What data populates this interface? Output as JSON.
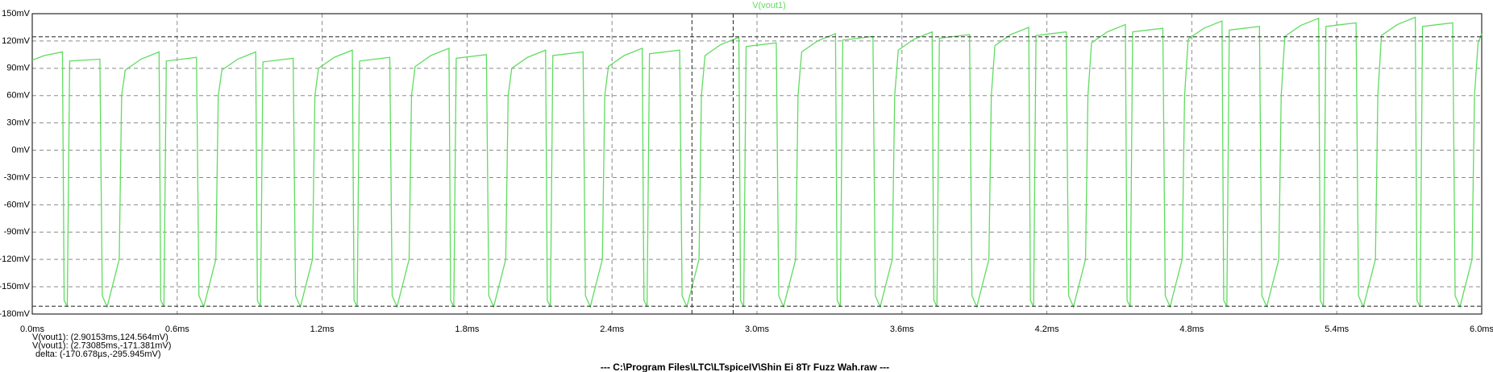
{
  "chart_data": {
    "type": "line",
    "x": [
      0,
      0.05,
      0.125,
      0.132,
      0.145,
      0.155,
      0.28,
      0.29,
      0.31,
      0.36,
      0.37,
      0.385,
      0.45,
      0.525,
      0.532,
      0.545,
      0.555,
      0.68,
      0.69,
      0.71,
      0.76,
      0.77,
      0.785,
      0.85,
      0.925,
      0.932,
      0.945,
      0.955,
      1.08,
      1.09,
      1.11,
      1.16,
      1.17,
      1.185,
      1.25,
      1.325,
      1.332,
      1.345,
      1.355,
      1.48,
      1.49,
      1.51,
      1.56,
      1.57,
      1.585,
      1.65,
      1.725,
      1.732,
      1.745,
      1.755,
      1.88,
      1.89,
      1.91,
      1.96,
      1.97,
      1.985,
      2.05,
      2.125,
      2.132,
      2.145,
      2.155,
      2.28,
      2.29,
      2.31,
      2.36,
      2.37,
      2.385,
      2.45,
      2.525,
      2.532,
      2.545,
      2.555,
      2.68,
      2.69,
      2.71,
      2.76,
      2.77,
      2.785,
      2.85,
      2.925,
      2.932,
      2.945,
      2.955,
      3.08,
      3.09,
      3.11,
      3.16,
      3.17,
      3.185,
      3.25,
      3.325,
      3.332,
      3.345,
      3.355,
      3.48,
      3.49,
      3.51,
      3.56,
      3.57,
      3.585,
      3.65,
      3.725,
      3.732,
      3.745,
      3.755,
      3.88,
      3.89,
      3.91,
      3.96,
      3.97,
      3.985,
      4.05,
      4.125,
      4.132,
      4.145,
      4.155,
      4.28,
      4.29,
      4.31,
      4.36,
      4.37,
      4.385,
      4.45,
      4.525,
      4.532,
      4.545,
      4.555,
      4.68,
      4.69,
      4.71,
      4.76,
      4.77,
      4.785,
      4.85,
      4.925,
      4.932,
      4.945,
      4.955,
      5.08,
      5.09,
      5.11,
      5.16,
      5.17,
      5.185,
      5.25,
      5.325,
      5.332,
      5.345,
      5.355,
      5.48,
      5.49,
      5.51,
      5.56,
      5.57,
      5.585,
      5.65,
      5.725,
      5.732,
      5.745,
      5.755,
      5.88,
      5.89,
      5.91,
      5.96,
      5.97,
      5.985,
      6.0
    ],
    "series": [
      {
        "name": "V(vout1)",
        "color": "#5fdc5f",
        "values": [
          99,
          104,
          108,
          -165,
          -172,
          98,
          100,
          -160,
          -172,
          -120,
          60,
          88,
          100,
          108,
          -165,
          -172,
          98,
          102,
          -160,
          -172,
          -120,
          60,
          88,
          100,
          108,
          -165,
          -172,
          97,
          101,
          -160,
          -172,
          -120,
          60,
          90,
          102,
          110,
          -165,
          -172,
          98,
          102,
          -160,
          -172,
          -120,
          60,
          92,
          104,
          112,
          -165,
          -172,
          101,
          105,
          -160,
          -172,
          -120,
          60,
          90,
          102,
          110,
          -165,
          -172,
          104,
          108,
          -160,
          -172,
          -120,
          60,
          92,
          104,
          112,
          -165,
          -172,
          106,
          110,
          -160,
          -172,
          -120,
          60,
          104,
          116,
          124,
          -165,
          -172,
          114,
          118,
          -160,
          -172,
          -120,
          60,
          108,
          120,
          128,
          -165,
          -172,
          121,
          125,
          -160,
          -172,
          -120,
          60,
          110,
          122,
          130,
          -165,
          -172,
          123,
          127,
          -160,
          -172,
          -120,
          60,
          115,
          127,
          135,
          -165,
          -172,
          126,
          130,
          -160,
          -172,
          -120,
          60,
          118,
          130,
          138,
          -165,
          -172,
          130,
          134,
          -160,
          -172,
          -120,
          60,
          122,
          134,
          142,
          -165,
          -172,
          132,
          136,
          -160,
          -172,
          -120,
          60,
          125,
          137,
          145,
          -165,
          -172,
          136,
          140,
          -160,
          -172,
          -120,
          60,
          126,
          138,
          146,
          -165,
          -172,
          136,
          140,
          -160,
          -172,
          -120,
          60,
          118,
          128
        ]
      }
    ],
    "xlim": [
      0,
      6.0
    ],
    "ylim": [
      -180,
      150
    ],
    "xticks": [
      {
        "value": 0,
        "label": "0.0ms"
      },
      {
        "value": 0.6,
        "label": "0.6ms"
      },
      {
        "value": 1.2,
        "label": "1.2ms"
      },
      {
        "value": 1.8,
        "label": "1.8ms"
      },
      {
        "value": 2.4,
        "label": "2.4ms"
      },
      {
        "value": 3.0,
        "label": "3.0ms"
      },
      {
        "value": 3.6,
        "label": "3.6ms"
      },
      {
        "value": 4.2,
        "label": "4.2ms"
      },
      {
        "value": 4.8,
        "label": "4.8ms"
      },
      {
        "value": 5.4,
        "label": "5.4ms"
      },
      {
        "value": 6.0,
        "label": "6.0ms"
      }
    ],
    "yticks": [
      {
        "value": -180,
        "label": "-180mV"
      },
      {
        "value": -150,
        "label": "-150mV"
      },
      {
        "value": -120,
        "label": "-120mV"
      },
      {
        "value": -90,
        "label": "-90mV"
      },
      {
        "value": -60,
        "label": "-60mV"
      },
      {
        "value": -30,
        "label": "-30mV"
      },
      {
        "value": 0,
        "label": "0mV"
      },
      {
        "value": 30,
        "label": "30mV"
      },
      {
        "value": 60,
        "label": "60mV"
      },
      {
        "value": 90,
        "label": "90mV"
      },
      {
        "value": 120,
        "label": "120mV"
      },
      {
        "value": 150,
        "label": "150mV"
      }
    ],
    "grid": true,
    "cursors": [
      {
        "x": 2.90153,
        "y": 124.564,
        "label": "V(vout1): (2.90153ms,124.564mV)"
      },
      {
        "x": 2.73085,
        "y": -171.381,
        "label": "V(vout1): (2.73085ms,-171.381mV)"
      }
    ],
    "delta": "delta: (-170.678µs,-295.945mV)",
    "footer": "---  C:\\Program Files\\LTC\\LTspiceIV\\Shin Ei 8Tr Fuzz Wah.raw  ---"
  }
}
